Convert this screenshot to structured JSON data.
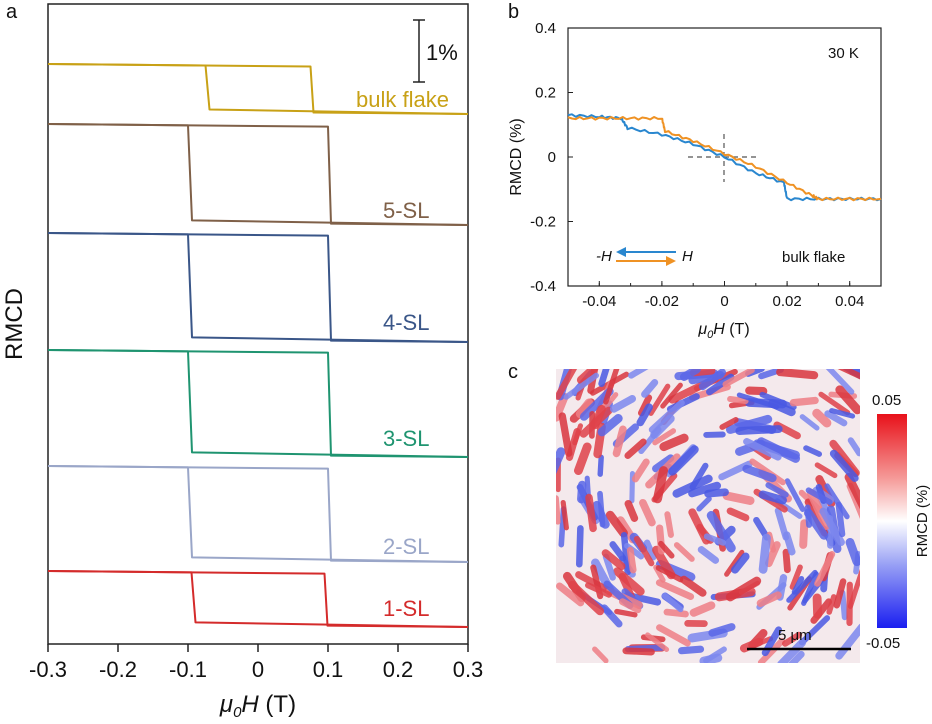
{
  "panels": {
    "a": "a",
    "b": "b",
    "c": "c"
  },
  "chart_data": [
    {
      "panel": "a",
      "type": "line",
      "xlabel_main": "μ",
      "xlabel_sub": "0",
      "xlabel_tail": "H (T)",
      "ylabel": "RMCD",
      "xlim": [
        -0.3,
        0.3
      ],
      "xticks": [
        "-0.3",
        "-0.2",
        "-0.1",
        "0",
        "0.1",
        "0.2",
        "0.3"
      ],
      "scale_bar": "1%",
      "series": [
        {
          "name": "bulk flake",
          "color": "#c8a116",
          "coercive": 0.075,
          "shift": 0.0
        },
        {
          "name": "5-SL",
          "color": "#7f6048",
          "coercive": 0.1,
          "shift": 0.0
        },
        {
          "name": "4-SL",
          "color": "#3a5688",
          "coercive": 0.1,
          "shift": 0.0
        },
        {
          "name": "3-SL",
          "color": "#1f9470",
          "coercive": 0.1,
          "shift": 0.0
        },
        {
          "name": "2-SL",
          "color": "#9aa6c8",
          "coercive": 0.1,
          "shift": 0.0
        },
        {
          "name": "1-SL",
          "color": "#d42b2b",
          "coercive": 0.095,
          "shift": 0.0
        }
      ]
    },
    {
      "panel": "b",
      "type": "line",
      "xlabel_main": "μ",
      "xlabel_sub": "0",
      "xlabel_tail": "H (T)",
      "ylabel": "RMCD (%)",
      "xlim": [
        -0.05,
        0.05
      ],
      "ylim": [
        -0.4,
        0.4
      ],
      "xticks": [
        "-0.04",
        "-0.02",
        "0",
        "0.02",
        "0.04"
      ],
      "yticks": [
        "0.4",
        "0.2",
        "0",
        "-0.2",
        "-0.4"
      ],
      "temperature": "30 K",
      "sample": "bulk flake",
      "legend": {
        "neg": "-H",
        "pos": "H"
      },
      "series": [
        {
          "name": "-H",
          "color": "#2a87cf",
          "x": [
            -0.05,
            -0.04,
            -0.033,
            -0.031,
            -0.02,
            -0.01,
            0.0,
            0.01,
            0.019,
            0.02,
            0.03,
            0.04,
            0.05
          ],
          "y": [
            0.13,
            0.125,
            0.12,
            0.09,
            0.07,
            0.04,
            0.0,
            -0.05,
            -0.08,
            -0.13,
            -0.13,
            -0.13,
            -0.13
          ]
        },
        {
          "name": "H",
          "color": "#ef9224",
          "x": [
            -0.05,
            -0.04,
            -0.03,
            -0.02,
            -0.019,
            -0.01,
            0.0,
            0.01,
            0.02,
            0.028,
            0.03,
            0.04,
            0.05
          ],
          "y": [
            0.12,
            0.12,
            0.12,
            0.12,
            0.08,
            0.05,
            0.01,
            -0.03,
            -0.08,
            -0.12,
            -0.13,
            -0.13,
            -0.13
          ]
        }
      ]
    },
    {
      "panel": "c",
      "type": "heatmap",
      "colorbar_label": "RMCD (%)",
      "colorbar_max": "0.05",
      "colorbar_min": "-0.05",
      "scale_bar": "5 μm",
      "zlim": [
        -0.05,
        0.05
      ]
    }
  ]
}
